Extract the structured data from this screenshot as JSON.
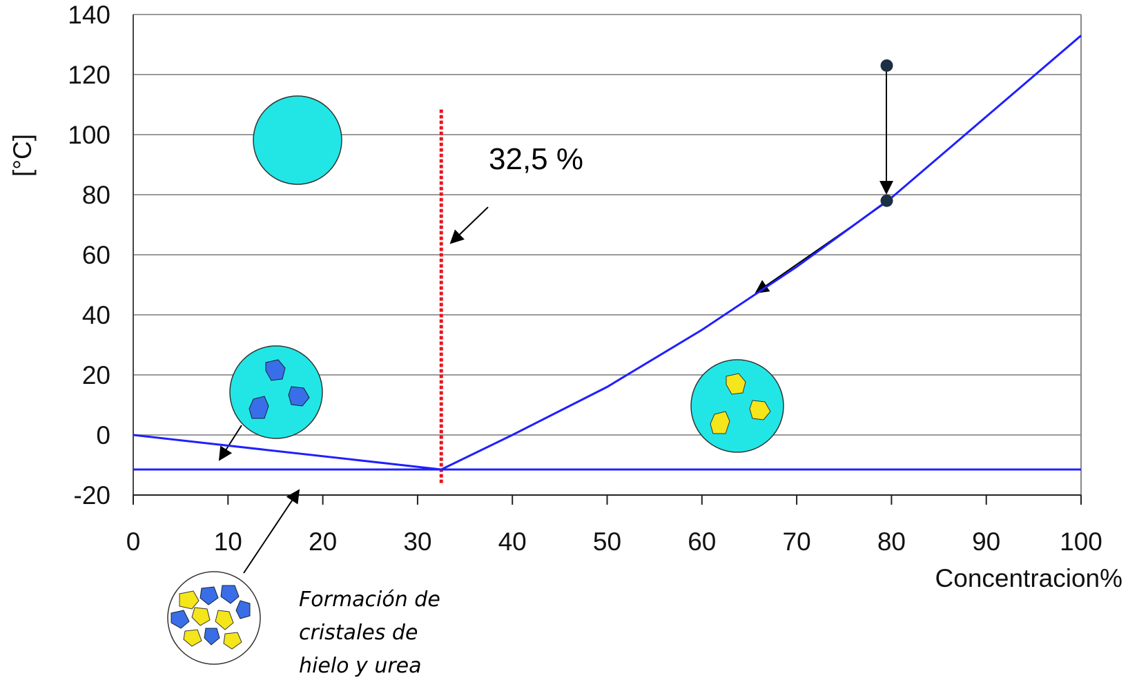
{
  "chart_data": {
    "type": "line",
    "y_label": "[°C]",
    "x_label": "Concentracion%",
    "xlim": [
      0,
      100
    ],
    "xticks": [
      0,
      10,
      20,
      30,
      40,
      50,
      60,
      70,
      80,
      90,
      100
    ],
    "ylim": [
      -20,
      140
    ],
    "yticks": [
      -20,
      0,
      20,
      40,
      60,
      80,
      100,
      120,
      140
    ],
    "grid": true,
    "series": [
      {
        "color": "#1f1fff",
        "x": [
          0,
          32.5
        ],
        "values": [
          0,
          -11.5
        ]
      },
      {
        "color": "#1f1fff",
        "x": [
          32.5,
          40,
          50,
          60,
          70,
          80,
          90,
          100
        ],
        "values": [
          -11.5,
          0,
          16,
          35,
          56,
          79,
          106,
          133
        ]
      },
      {
        "color": "#1f1fff",
        "x": [
          0,
          100
        ],
        "values": [
          -11.5,
          -11.5
        ]
      }
    ],
    "points": {
      "color": "#1b2f45",
      "x": [
        79.5,
        79.5
      ],
      "values": [
        123,
        78
      ]
    },
    "marker_line": {
      "color": "#e8141e",
      "x": 32.5,
      "y": [
        -16,
        109
      ]
    },
    "annotations": [
      "32,5 %",
      "Formación de",
      "cristales de",
      "hielo y urea"
    ]
  }
}
